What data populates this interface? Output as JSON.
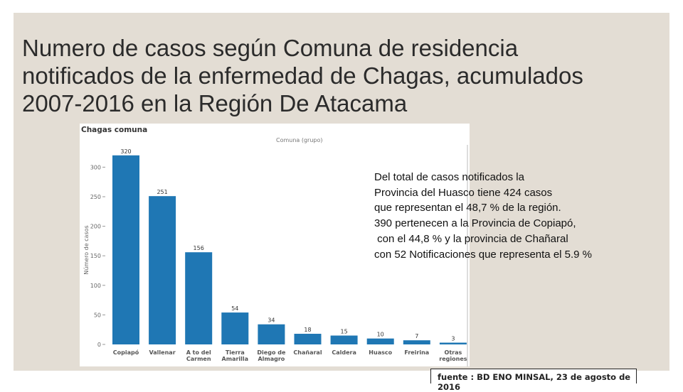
{
  "slide": {
    "title": "Numero de casos según Comuna de residencia\nnotificados de la enfermedad de Chagas, acumulados\n2007-2016 en la Región De Atacama",
    "note": "Del total de casos notificados la\nProvincia del Huasco tiene 424 casos\nque representan el 48,7 % de la región.\n390 pertenecen a la Provincia de Copiapó,\n con el 44,8 % y la provincia de Chañaral\ncon 52 Notificaciones que representa el 5.9 %",
    "source": "fuente : BD ENO MINSAL, 23 de agosto de 2016"
  },
  "chart_data": {
    "type": "bar",
    "title": "Chagas comuna",
    "subtitle": "Comuna (grupo)",
    "xlabel": "",
    "ylabel": "Número de casos",
    "categories": [
      "Copiapó",
      "Vallenar",
      "A to del Carmen",
      "Tierra Amarilla",
      "Diego de Almagro",
      "Chañaral",
      "Caldera",
      "Huasco",
      "Freirina",
      "Otras regiones"
    ],
    "values": [
      320,
      251,
      156,
      54,
      34,
      18,
      15,
      10,
      7,
      3
    ],
    "data_labels": [
      "320",
      "251",
      "156",
      "54",
      "34",
      "18",
      "15",
      "10",
      "7",
      "3"
    ],
    "yticks": [
      0,
      50,
      100,
      150,
      200,
      250,
      300
    ],
    "ylim": [
      0,
      320
    ],
    "grid": false,
    "bar_color": "#1f77b4"
  }
}
